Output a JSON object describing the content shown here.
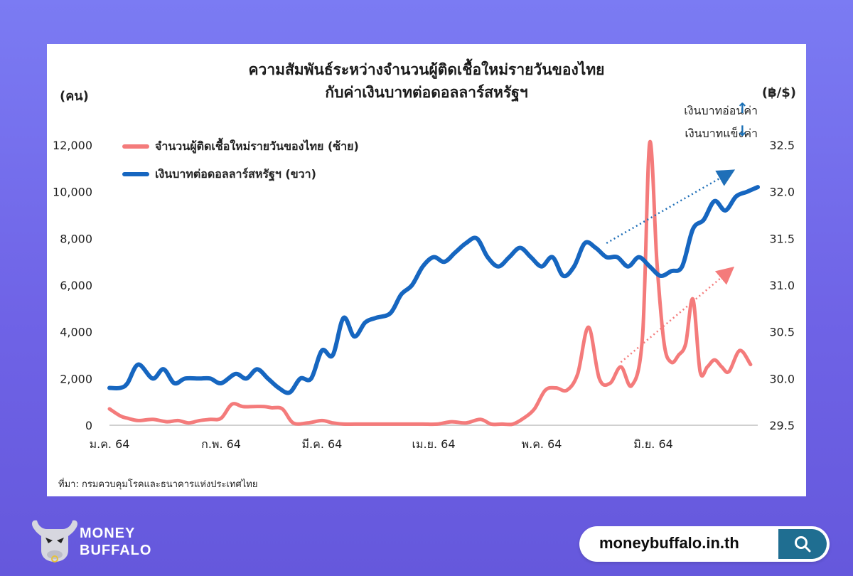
{
  "chart_data": {
    "type": "line",
    "title": "ความสัมพันธ์ระหว่างจำนวนผู้ติดเชื้อใหม่รายวันของไทย",
    "subtitle": "กับค่าเงินบาทต่อดอลลาร์สหรัฐฯ",
    "ylabel_left": "(คน)",
    "ylabel_right": "(฿/$)",
    "x_tick_labels": [
      "ม.ค. 64",
      "ก.พ. 64",
      "มี.ค. 64",
      "เม.ย. 64",
      "พ.ค. 64",
      "มิ.ย. 64"
    ],
    "y_left_ticks": [
      "0",
      "2,000",
      "4,000",
      "6,000",
      "8,000",
      "10,000",
      "12,000"
    ],
    "y_right_ticks": [
      "29.5",
      "30.0",
      "30.5",
      "31.0",
      "31.5",
      "32.0",
      "32.5"
    ],
    "ylim_left": [
      0,
      12000
    ],
    "ylim_right": [
      29.5,
      32.5
    ],
    "xlim": [
      0,
      180
    ],
    "grid": false,
    "legend_position": "top-left",
    "series": [
      {
        "name": "จำนวนผู้ติดเชื้อใหม่รายวันของไทย (ซ้าย)",
        "axis": "left",
        "color": "#f47b7b",
        "x": [
          0,
          3,
          5,
          8,
          12,
          16,
          19,
          22,
          25,
          28,
          31,
          34,
          37,
          40,
          43,
          45,
          48,
          51,
          55,
          59,
          62,
          65,
          68,
          71,
          75,
          79,
          83,
          87,
          91,
          95,
          99,
          103,
          106,
          109,
          112,
          115,
          118,
          121,
          124,
          127,
          130,
          133,
          136,
          139,
          142,
          145,
          148,
          150,
          152,
          154,
          156,
          158,
          160,
          162,
          164,
          166,
          168,
          170,
          172,
          175,
          178
        ],
        "values": [
          700,
          400,
          300,
          200,
          250,
          150,
          200,
          100,
          200,
          250,
          300,
          900,
          800,
          800,
          800,
          750,
          700,
          100,
          100,
          200,
          100,
          50,
          50,
          50,
          50,
          50,
          50,
          50,
          50,
          150,
          100,
          250,
          50,
          50,
          50,
          300,
          700,
          1500,
          1600,
          1500,
          2200,
          4200,
          2000,
          1800,
          2500,
          1700,
          3800,
          12100,
          7000,
          3500,
          2700,
          3000,
          3500,
          5400,
          2300,
          2500,
          2800,
          2500,
          2300,
          3200,
          2600
        ]
      },
      {
        "name": "เงินบาทต่อดอลลาร์สหรัฐฯ (ขวา)",
        "axis": "right",
        "color": "#1666c0",
        "x": [
          0,
          3,
          5,
          8,
          12,
          15,
          18,
          21,
          25,
          28,
          31,
          35,
          38,
          41,
          44,
          47,
          50,
          53,
          56,
          59,
          62,
          65,
          68,
          71,
          74,
          78,
          81,
          84,
          87,
          90,
          93,
          96,
          99,
          102,
          105,
          108,
          111,
          114,
          117,
          120,
          123,
          126,
          129,
          132,
          135,
          138,
          141,
          144,
          147,
          150,
          153,
          156,
          159,
          162,
          165,
          168,
          171,
          174,
          177,
          180
        ],
        "values": [
          29.9,
          29.9,
          29.95,
          30.15,
          30.0,
          30.1,
          29.95,
          30.0,
          30.0,
          30.0,
          29.95,
          30.05,
          30.0,
          30.1,
          30.0,
          29.9,
          29.85,
          30.0,
          30.0,
          30.3,
          30.25,
          30.65,
          30.45,
          30.6,
          30.65,
          30.7,
          30.9,
          31.0,
          31.2,
          31.3,
          31.25,
          31.35,
          31.45,
          31.5,
          31.3,
          31.2,
          31.3,
          31.4,
          31.3,
          31.2,
          31.3,
          31.1,
          31.2,
          31.45,
          31.4,
          31.3,
          31.3,
          31.2,
          31.3,
          31.2,
          31.1,
          31.15,
          31.2,
          31.6,
          31.7,
          31.9,
          31.8,
          31.95,
          32.0,
          32.05
        ]
      }
    ],
    "trend_arrows": [
      {
        "color": "#1f6fb8",
        "from": [
          138,
          31.45
        ],
        "to": [
          172,
          32.2
        ]
      },
      {
        "color": "#f47b7b",
        "from": [
          142,
          2700
        ],
        "to": [
          172,
          6600
        ]
      }
    ]
  },
  "notes": {
    "weaken": "เงินบาทอ่อนค่า",
    "strengthen": "เงินบาทแข็งค่า"
  },
  "source": "ที่มา: กรมควบคุมโรคและธนาคารแห่งประเทศไทย",
  "brand": {
    "line1": "MONEY",
    "line2": "BUFFALO",
    "url": "moneybuffalo.in.th",
    "icon": "search-icon"
  }
}
